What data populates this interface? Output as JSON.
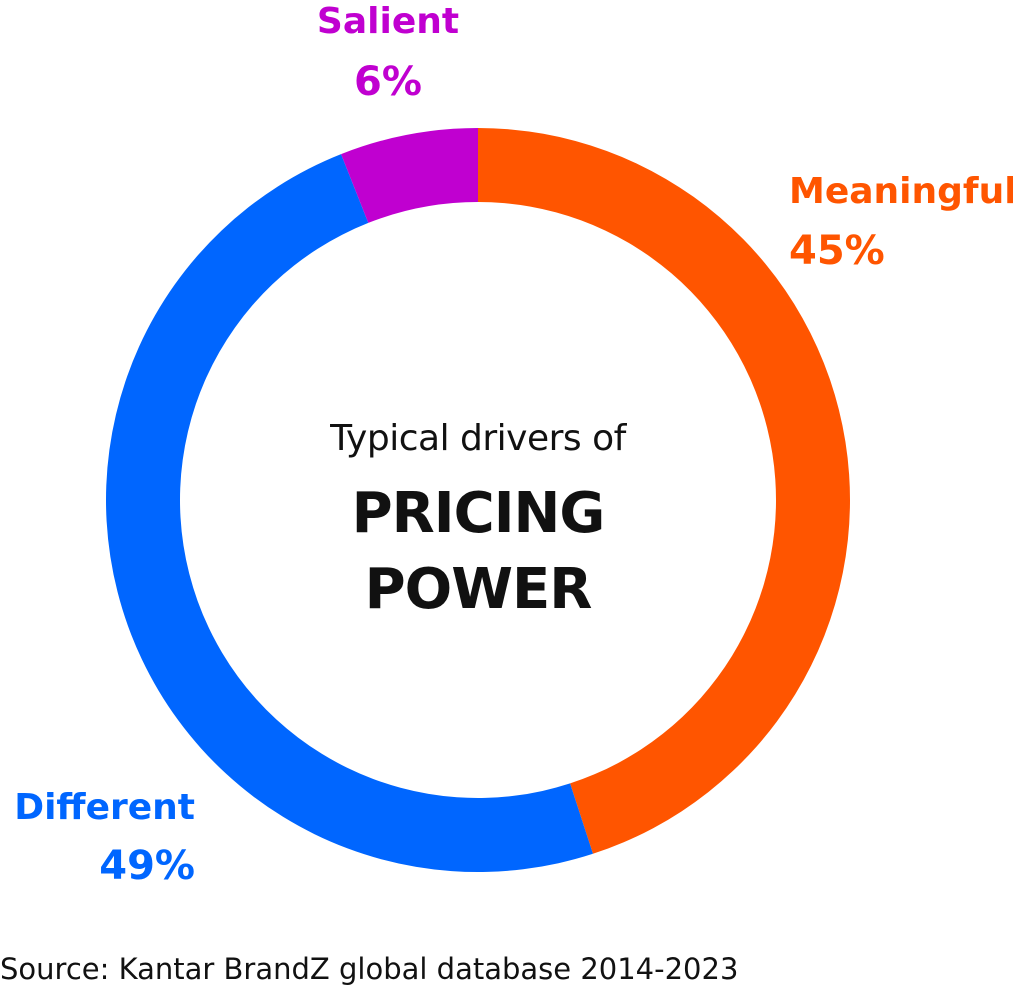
{
  "chart_data": {
    "type": "pie",
    "donut": true,
    "center_text": {
      "subtitle": "Typical drivers of",
      "title_lines": [
        "PRICING",
        "POWER"
      ]
    },
    "slices": [
      {
        "label": "Meaningful",
        "value": 45,
        "display": "45%",
        "color": "#ff5500"
      },
      {
        "label": "Different",
        "value": 49,
        "display": "49%",
        "color": "#0066ff"
      },
      {
        "label": "Salient",
        "value": 6,
        "display": "6%",
        "color": "#c000d0"
      }
    ]
  },
  "source": "Source: Kantar BrandZ global database 2014-2023"
}
